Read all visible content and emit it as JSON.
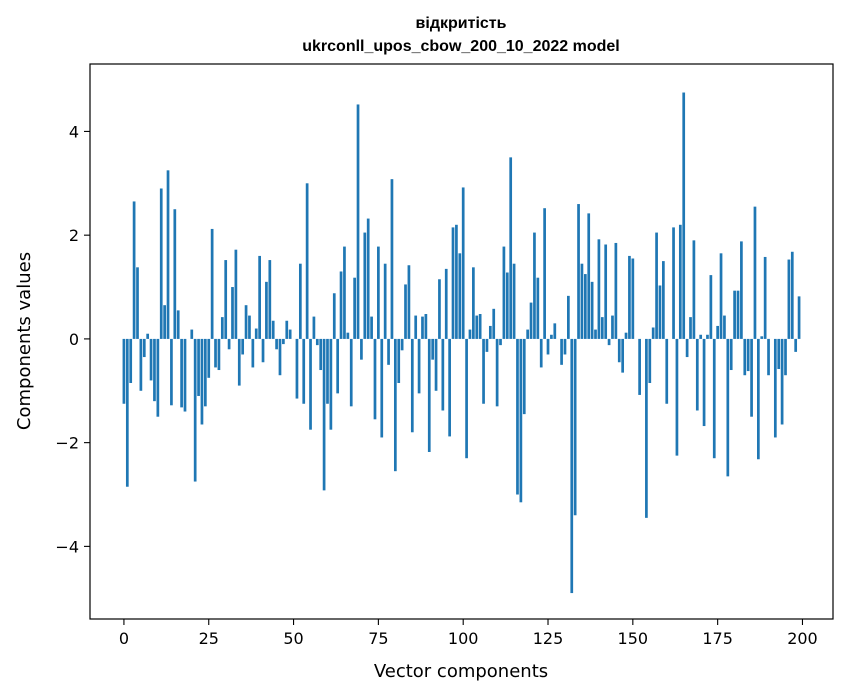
{
  "chart_data": {
    "type": "bar",
    "title_line1": "відкритість",
    "title_line2": "ukrconll_upos_cbow_200_10_2022 model",
    "xlabel": "Vector components",
    "ylabel": "Components values",
    "xlim": [
      -10,
      209
    ],
    "ylim": [
      -5.4,
      5.3
    ],
    "xticks": [
      0,
      25,
      50,
      75,
      100,
      125,
      150,
      175,
      200
    ],
    "yticks": [
      -4,
      -2,
      0,
      2,
      4
    ],
    "ytick_labels": [
      "−4",
      "−2",
      "0",
      "2",
      "4"
    ],
    "bar_color": "#1f77b4",
    "values": [
      -1.25,
      -2.85,
      -0.85,
      2.65,
      1.38,
      -1.0,
      -0.35,
      0.1,
      -0.8,
      -1.2,
      -1.5,
      2.9,
      0.65,
      3.25,
      -1.28,
      2.5,
      0.55,
      -1.32,
      -1.4,
      0.0,
      0.18,
      -2.75,
      -1.1,
      -1.65,
      -1.3,
      -0.75,
      2.12,
      -0.55,
      -0.6,
      0.42,
      1.52,
      -0.2,
      1.0,
      1.72,
      -0.9,
      -0.3,
      0.65,
      0.45,
      -0.55,
      0.2,
      1.6,
      -0.45,
      1.1,
      1.52,
      0.35,
      -0.2,
      -0.7,
      -0.1,
      0.35,
      0.18,
      0.0,
      -1.15,
      1.45,
      -1.25,
      3.0,
      -1.75,
      0.43,
      -0.12,
      -0.6,
      -2.92,
      -1.25,
      -1.75,
      0.88,
      -1.05,
      1.3,
      1.78,
      0.12,
      -1.3,
      1.18,
      4.52,
      -0.4,
      2.05,
      2.32,
      0.43,
      -1.55,
      1.78,
      -1.9,
      1.45,
      -0.5,
      3.08,
      -2.55,
      -0.85,
      -0.22,
      1.05,
      1.42,
      -1.8,
      0.45,
      -1.05,
      0.43,
      0.48,
      -2.18,
      -0.4,
      -1.0,
      1.15,
      -1.38,
      1.35,
      -1.88,
      2.15,
      2.2,
      1.65,
      2.92,
      -2.3,
      0.18,
      1.38,
      0.45,
      0.48,
      -1.25,
      -0.25,
      0.25,
      0.58,
      -1.3,
      -0.12,
      1.78,
      1.28,
      3.5,
      1.45,
      -3.0,
      -3.15,
      -1.45,
      0.18,
      0.7,
      2.05,
      1.18,
      -0.55,
      2.52,
      -0.3,
      0.08,
      0.3,
      0.0,
      -0.5,
      -0.3,
      0.83,
      -4.9,
      -3.4,
      2.6,
      1.45,
      1.25,
      2.42,
      1.1,
      0.18,
      1.92,
      0.42,
      1.82,
      -0.12,
      0.45,
      1.85,
      -0.45,
      -0.65,
      0.12,
      1.6,
      1.55,
      0.0,
      -1.08,
      0.0,
      -3.45,
      -0.85,
      0.22,
      2.05,
      1.03,
      1.5,
      -1.25,
      0.0,
      2.15,
      -2.25,
      2.2,
      4.75,
      -0.35,
      0.42,
      1.9,
      -1.38,
      0.08,
      -1.68,
      0.08,
      1.23,
      -2.3,
      0.25,
      1.65,
      0.45,
      -2.65,
      -0.6,
      0.93,
      0.93,
      1.88,
      -0.7,
      -0.62,
      -1.5,
      2.55,
      -2.32,
      0.05,
      1.58,
      -0.7,
      0.0,
      -1.9,
      -0.58,
      -1.65,
      -0.7,
      1.53,
      1.68,
      -0.25,
      0.82
    ]
  }
}
